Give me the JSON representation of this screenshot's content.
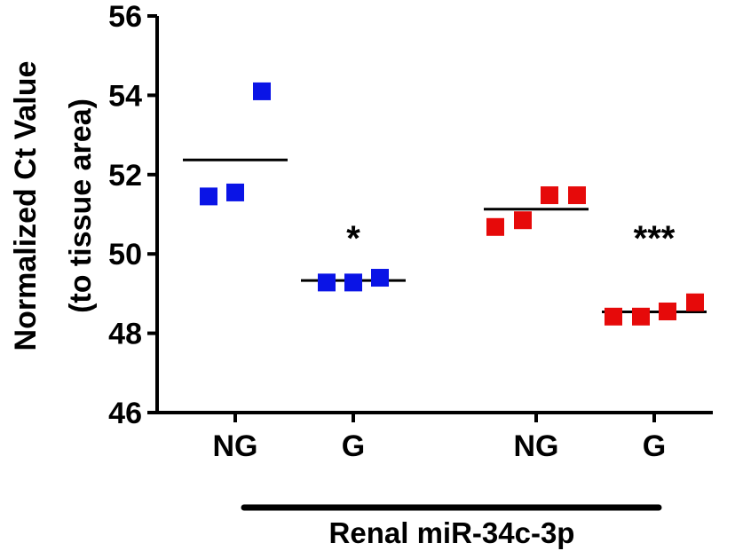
{
  "chart_data": {
    "type": "scatter",
    "title": "",
    "ylabel_lines": [
      "Normalized  Ct Value",
      "(to tissue area)"
    ],
    "ylim": [
      46,
      56
    ],
    "yticks": [
      "46",
      "48",
      "50",
      "52",
      "54",
      "56"
    ],
    "group_caption": "Renal miR-34c-3p",
    "groups": [
      {
        "label": "NG",
        "color": "#0a14e6",
        "points": [
          51.45,
          51.55,
          54.1
        ],
        "mean": 52.37,
        "significance": ""
      },
      {
        "label": "G",
        "color": "#0a14e6",
        "points": [
          49.4,
          49.28,
          49.28
        ],
        "mean": 49.33,
        "significance": "*"
      },
      {
        "label": "NG",
        "color": "#e60a0a",
        "points": [
          50.68,
          50.85,
          51.48,
          51.48
        ],
        "mean": 51.13,
        "significance": ""
      },
      {
        "label": "G",
        "color": "#e60a0a",
        "points": [
          48.55,
          48.42,
          48.42,
          48.78
        ],
        "mean": 48.54,
        "significance": "***"
      }
    ]
  }
}
